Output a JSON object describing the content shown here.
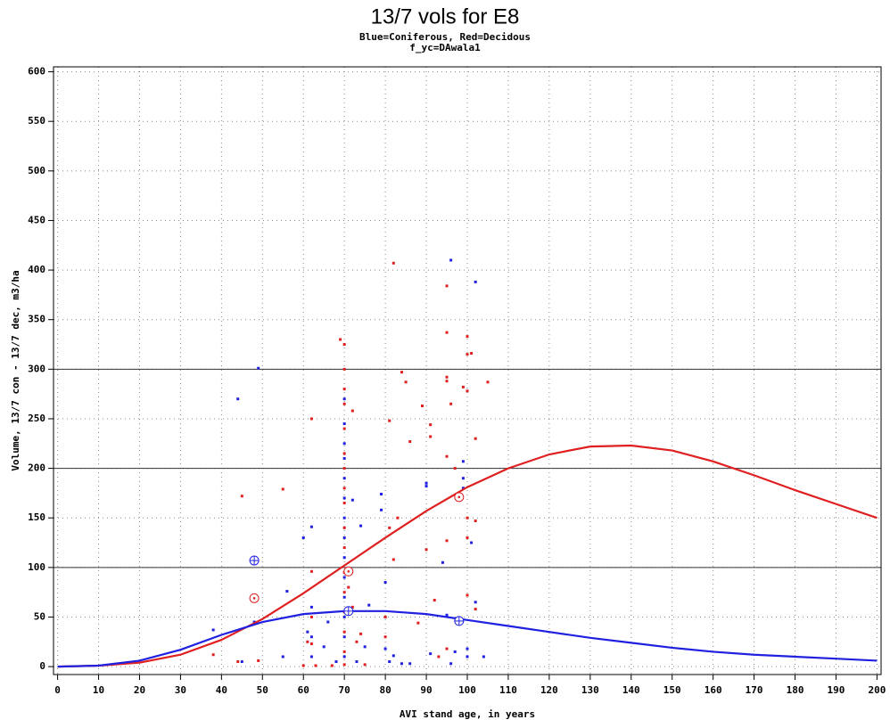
{
  "chart_data": {
    "type": "scatter",
    "title": "13/7 vols for E8",
    "subtitle": [
      "Blue=Coniferous, Red=Decidous",
      "f_yc=DAwala1"
    ],
    "x_label": "AVI stand age, in years",
    "y_label": "Volume, 13/7 con - 13/7 dec, m3/ha",
    "xlim": [
      -1,
      201
    ],
    "ylim": [
      -8,
      605
    ],
    "xticks": [
      0,
      10,
      20,
      30,
      40,
      50,
      60,
      70,
      80,
      90,
      100,
      110,
      120,
      130,
      140,
      150,
      160,
      170,
      180,
      190,
      200
    ],
    "yticks": [
      0,
      50,
      100,
      150,
      200,
      250,
      300,
      350,
      400,
      450,
      500,
      550,
      600
    ],
    "grid": true,
    "grid_style": "dotted",
    "reflines": [
      100,
      200,
      300
    ],
    "series": [
      {
        "color": "#2020e0",
        "style": "points",
        "x": [
          38,
          44,
          45,
          49,
          48,
          55,
          56,
          60,
          61,
          62,
          62,
          62,
          62,
          65,
          66,
          68,
          70,
          70,
          70,
          70,
          70,
          70,
          70,
          70,
          70,
          70,
          70,
          70,
          70,
          70,
          72,
          73,
          74,
          75,
          76,
          79,
          79,
          80,
          80,
          81,
          82,
          84,
          86,
          90,
          90,
          91,
          94,
          95,
          96,
          96,
          97,
          99,
          99,
          99,
          100,
          100,
          101,
          102,
          102,
          104
        ],
        "values": [
          37,
          270,
          5,
          301,
          45,
          10,
          76,
          130,
          35,
          141,
          60,
          30,
          10,
          20,
          45,
          5,
          270,
          245,
          225,
          210,
          190,
          170,
          150,
          130,
          110,
          90,
          70,
          50,
          30,
          10,
          168,
          5,
          142,
          20,
          62,
          174,
          158,
          85,
          18,
          5,
          11,
          3,
          3,
          185,
          182,
          13,
          105,
          52,
          410,
          3,
          15,
          207,
          190,
          180,
          18,
          10,
          125,
          388,
          65,
          10
        ]
      },
      {
        "color": "#e02020",
        "style": "points",
        "x": [
          38,
          44,
          45,
          49,
          55,
          60,
          61,
          62,
          62,
          62,
          62,
          63,
          67,
          69,
          70,
          70,
          70,
          70,
          70,
          70,
          70,
          70,
          70,
          70,
          70,
          70,
          70,
          70,
          70,
          70,
          70,
          71,
          72,
          72,
          73,
          74,
          75,
          80,
          80,
          81,
          81,
          82,
          82,
          83,
          84,
          85,
          86,
          88,
          89,
          90,
          91,
          91,
          92,
          93,
          95,
          95,
          95,
          95,
          95,
          95,
          95,
          96,
          97,
          99,
          100,
          100,
          100,
          100,
          100,
          100,
          101,
          102,
          102,
          102,
          105
        ],
        "values": [
          12,
          5,
          172,
          6,
          179,
          1,
          25,
          250,
          96,
          50,
          23,
          1,
          1,
          330,
          325,
          300,
          280,
          265,
          240,
          215,
          200,
          180,
          165,
          140,
          120,
          95,
          75,
          55,
          35,
          15,
          2,
          80,
          258,
          60,
          25,
          33,
          2,
          50,
          30,
          248,
          140,
          407,
          108,
          150,
          297,
          287,
          227,
          44,
          263,
          118,
          244,
          232,
          67,
          10,
          384,
          337,
          292,
          288,
          212,
          127,
          18,
          265,
          200,
          282,
          333,
          315,
          278,
          150,
          130,
          72,
          316,
          230,
          147,
          58,
          287
        ]
      },
      {
        "color": "#e02020",
        "style": "line",
        "x": [
          0,
          10,
          20,
          30,
          40,
          50,
          60,
          70,
          80,
          90,
          100,
          110,
          120,
          130,
          140,
          150,
          160,
          170,
          180,
          190,
          200
        ],
        "values": [
          0,
          1,
          4,
          12,
          27,
          48,
          74,
          102,
          130,
          157,
          181,
          200,
          214,
          222,
          223,
          218,
          207,
          193,
          178,
          164,
          150
        ]
      },
      {
        "color": "#2020e0",
        "style": "line",
        "x": [
          0,
          10,
          20,
          30,
          40,
          50,
          60,
          70,
          80,
          90,
          100,
          110,
          120,
          130,
          140,
          150,
          160,
          170,
          180,
          190,
          200
        ],
        "values": [
          0,
          1,
          6,
          17,
          32,
          45,
          53,
          56,
          56,
          53,
          47,
          41,
          35,
          29,
          24,
          19,
          15,
          12,
          10,
          8,
          6
        ]
      },
      {
        "color": "#2020e0",
        "style": "circle-plus",
        "x": [
          48,
          71,
          98
        ],
        "values": [
          107,
          56,
          46
        ]
      },
      {
        "color": "#e02020",
        "style": "circle-dot",
        "x": [
          48,
          71,
          98
        ],
        "values": [
          69,
          96,
          171
        ]
      }
    ]
  }
}
